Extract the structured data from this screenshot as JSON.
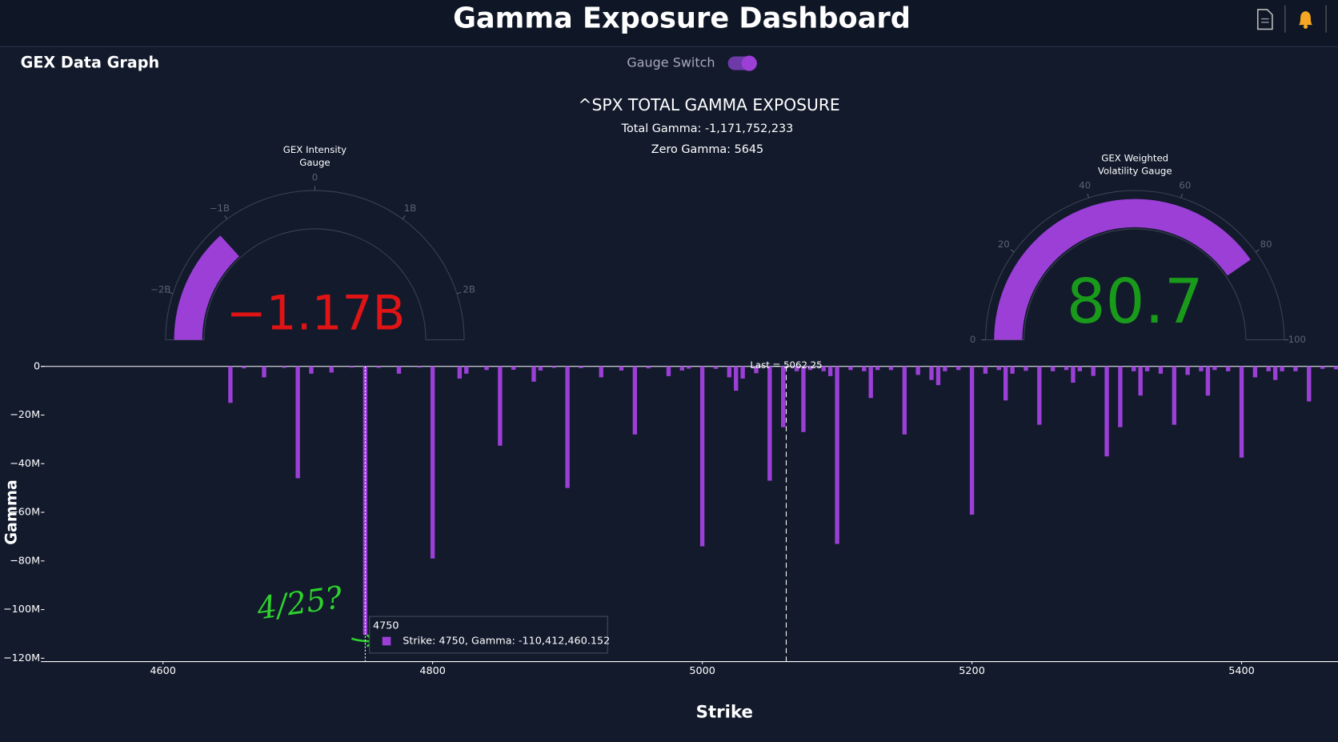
{
  "header": {
    "title": "Gamma Exposure Dashboard"
  },
  "panel": {
    "title": "GEX Data Graph",
    "switch_label": "Gauge Switch"
  },
  "chart_data": [
    {
      "type": "bar",
      "title": "^SPX TOTAL GAMMA EXPOSURE",
      "subtitles": [
        "Total Gamma: -1,171,752,233",
        "Zero Gamma: 5645"
      ],
      "x_label": "Strike",
      "y_label": "Gamma",
      "color": "#9b3fd6",
      "x": [
        4650,
        4660,
        4675,
        4690,
        4700,
        4710,
        4725,
        4740,
        4750,
        4760,
        4775,
        4790,
        4800,
        4820,
        4825,
        4840,
        4850,
        4860,
        4875,
        4880,
        4890,
        4900,
        4910,
        4925,
        4940,
        4950,
        4960,
        4975,
        4985,
        4990,
        5000,
        5010,
        5020,
        5025,
        5030,
        5040,
        5050,
        5060,
        5070,
        5075,
        5080,
        5090,
        5095,
        5100,
        5110,
        5120,
        5125,
        5130,
        5140,
        5150,
        5160,
        5170,
        5175,
        5180,
        5190,
        5200,
        5210,
        5220,
        5225,
        5230,
        5240,
        5250,
        5260,
        5270,
        5275,
        5280,
        5290,
        5300,
        5310,
        5320,
        5325,
        5330,
        5340,
        5350,
        5360,
        5370,
        5375,
        5380,
        5390,
        5400,
        5410,
        5420,
        5425,
        5430,
        5440,
        5450,
        5460,
        5470
      ],
      "values": [
        -15000000,
        -800000,
        -4500000,
        -600000,
        -46000000,
        -3000000,
        -2500000,
        -500000,
        -110412460.152,
        -600000,
        -3000000,
        -500000,
        -79000000,
        -5000000,
        -3000000,
        -1500000,
        -32600000,
        -1400000,
        -6300000,
        -1700000,
        -600000,
        -50000000,
        -700000,
        -4500000,
        -1700000,
        -28000000,
        -800000,
        -4000000,
        -1700000,
        -900000,
        -74000000,
        -1000000,
        -4500000,
        -10000000,
        -5000000,
        -2800000,
        -47000000,
        -25000000,
        -2000000,
        -27000000,
        -1500000,
        -2000000,
        -4000000,
        -73000000,
        -1500000,
        -2000000,
        -13000000,
        -1500000,
        -1500000,
        -28000000,
        -3500000,
        -5600000,
        -7700000,
        -2000000,
        -1500000,
        -61000000,
        -3000000,
        -1500000,
        -14000000,
        -3000000,
        -1800000,
        -24000000,
        -2000000,
        -1500000,
        -6700000,
        -2000000,
        -3900000,
        -37000000,
        -25000000,
        -2000000,
        -12000000,
        -2000000,
        -3000000,
        -24000000,
        -3500000,
        -2000000,
        -12000000,
        -1500000,
        -2000000,
        -37500000,
        -4500000,
        -2000000,
        -5600000,
        -2000000,
        -2000000,
        -14400000,
        -1000000,
        -1200000
      ],
      "xlim": [
        4509.5,
        5471.5
      ],
      "ylim": [
        -121400000,
        3200000
      ],
      "xticks": [
        4600,
        4800,
        5000,
        5200,
        5400
      ],
      "yticks": [
        0,
        {
          "value": -20000000,
          "label": "−20M"
        },
        {
          "value": -40000000,
          "label": "−40M"
        },
        {
          "value": -60000000,
          "label": "−60M"
        },
        {
          "value": -80000000,
          "label": "−80M"
        },
        {
          "value": -100000000,
          "label": "−100M"
        },
        {
          "value": -120000000,
          "label": "−120M"
        }
      ],
      "last": {
        "value": 5062.25,
        "label": "Last = 5062.25"
      },
      "tooltip": {
        "title": "4750",
        "text": "Strike: 4750, Gamma: -110,412,460.152"
      },
      "annotations": [
        "4/25?"
      ]
    },
    {
      "type": "gauge",
      "title": "GEX Intensity Gauge",
      "value": -1171752233,
      "value_label": "−1.17B",
      "range": [
        -2500000000,
        2500000000
      ],
      "ticks": [
        {
          "value": -2000000000,
          "label": "−2B"
        },
        {
          "value": -1000000000,
          "label": "−1B"
        },
        0,
        {
          "value": 1000000000,
          "label": "1B"
        },
        {
          "value": 2000000000,
          "label": "2B"
        }
      ],
      "color": "#9b3fd6",
      "value_color": "#e01414"
    },
    {
      "type": "gauge",
      "title": "GEX Weighted Volatility Gauge",
      "value": 80.7,
      "range": [
        0,
        100
      ],
      "ticks": [
        0,
        20,
        40,
        60,
        80,
        100
      ],
      "color": "#9b3fd6",
      "value_color": "#1a9a1a"
    }
  ]
}
